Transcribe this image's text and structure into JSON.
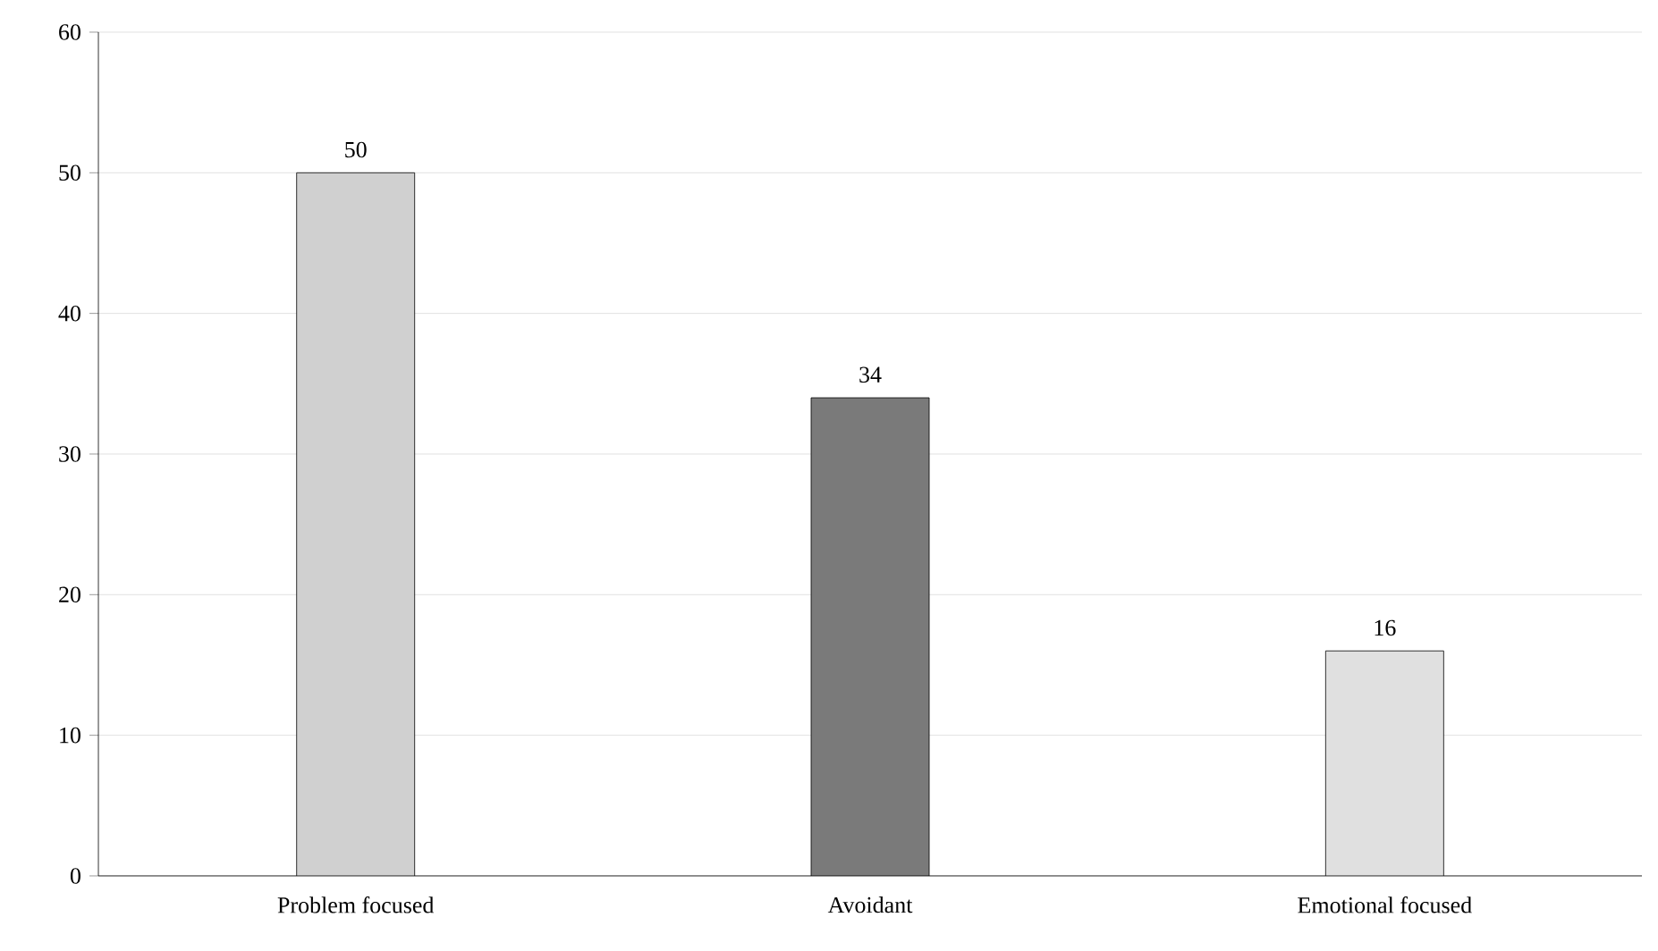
{
  "chart_data": {
    "type": "bar",
    "categories": [
      "Problem focused",
      "Avoidant",
      "Emotional focused"
    ],
    "values": [
      50,
      34,
      16
    ],
    "colors": [
      "#d0d0d0",
      "#7a7a7a",
      "#e0e0e0"
    ],
    "ylim": [
      0,
      60
    ],
    "yticks": [
      0,
      10,
      20,
      30,
      40,
      50,
      60
    ],
    "grid": "y",
    "data_labels": true
  }
}
